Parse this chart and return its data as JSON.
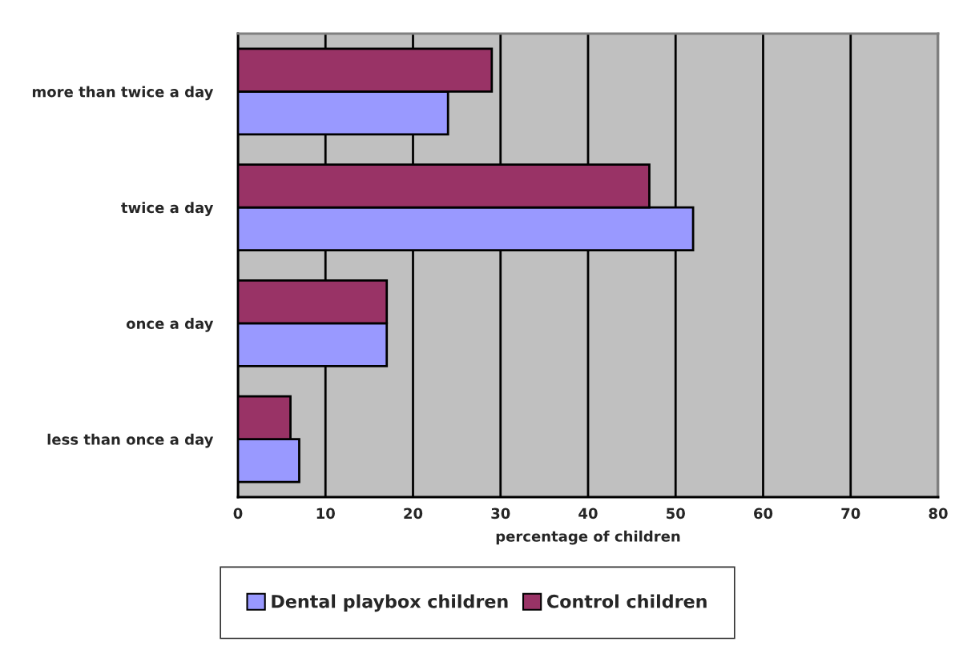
{
  "chart_data": {
    "type": "bar",
    "orientation": "horizontal",
    "xlabel": "percentage of children",
    "categories": [
      "more than twice a day",
      "twice a day",
      "once a day",
      "less than once a day"
    ],
    "series": [
      {
        "name": "Dental playbox children",
        "color": "#9999ff",
        "values": [
          24,
          52,
          17,
          7
        ]
      },
      {
        "name": "Control children",
        "color": "#993366",
        "values": [
          29,
          47,
          17,
          6
        ]
      }
    ],
    "xlim": [
      0,
      80
    ],
    "xticks": [
      0,
      10,
      20,
      30,
      40,
      50,
      60,
      70,
      80
    ],
    "grid": "x",
    "legend": "bottom"
  }
}
